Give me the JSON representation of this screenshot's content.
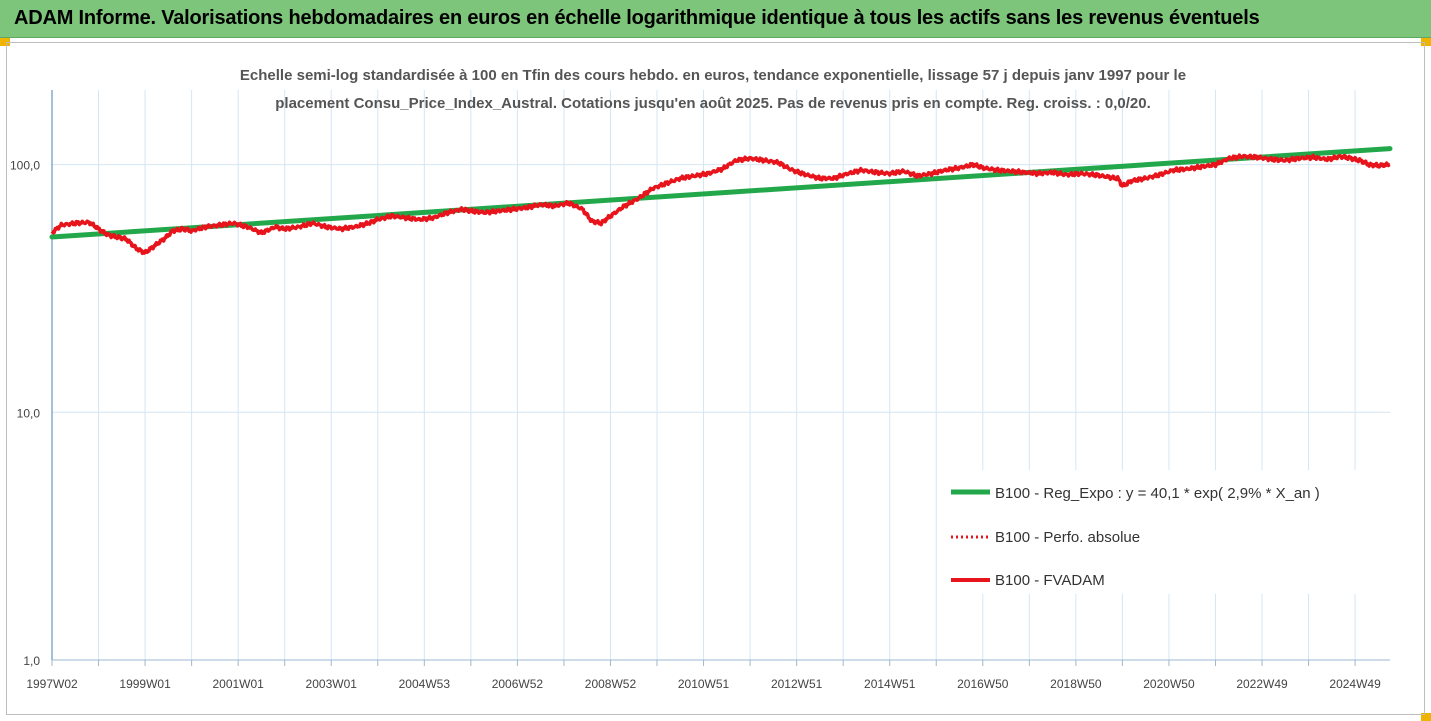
{
  "banner": {
    "title": "ADAM Informe. Valorisations hebdomadaires en euros en échelle logarithmique identique à tous les actifs sans les revenus éventuels"
  },
  "colors": {
    "banner": "#7dc57a",
    "trend": "#22a84a",
    "series": "#e8141b",
    "grid": "#d4e6f4",
    "accent": "#f0b400"
  },
  "chart_data": {
    "type": "line",
    "title_lines": [
      "Echelle semi-log standardisée à 100 en Tfin des cours hebdo. en euros, tendance exponentielle, lissage 57 j depuis janv 1997 pour le",
      "placement Consu_Price_Index_Austral. Cotations jusqu'en août 2025. Pas de revenus pris en compte. Reg. croiss. : 0,0/20."
    ],
    "y_scale": "log",
    "ylim": [
      1,
      200
    ],
    "y_ticks": [
      {
        "value": 1,
        "label": "1,0"
      },
      {
        "value": 10,
        "label": "10,0"
      },
      {
        "value": 100,
        "label": "100,0"
      }
    ],
    "xlim": [
      1997.0,
      2025.75
    ],
    "x_tick_labels": [
      {
        "t": 1997.0,
        "label": "1997W02"
      },
      {
        "t": 1999.0,
        "label": "1999W01"
      },
      {
        "t": 2001.0,
        "label": "2001W01"
      },
      {
        "t": 2003.0,
        "label": "2003W01"
      },
      {
        "t": 2005.0,
        "label": "2004W53"
      },
      {
        "t": 2007.0,
        "label": "2006W52"
      },
      {
        "t": 2009.0,
        "label": "2008W52"
      },
      {
        "t": 2011.0,
        "label": "2010W51"
      },
      {
        "t": 2013.0,
        "label": "2012W51"
      },
      {
        "t": 2015.0,
        "label": "2014W51"
      },
      {
        "t": 2017.0,
        "label": "2016W50"
      },
      {
        "t": 2019.0,
        "label": "2018W50"
      },
      {
        "t": 2021.0,
        "label": "2020W50"
      },
      {
        "t": 2023.0,
        "label": "2022W49"
      },
      {
        "t": 2025.0,
        "label": "2024W49"
      }
    ],
    "x_minor_ticks_per_year": 1,
    "grid": true,
    "legend_position": "bottom-right",
    "series": [
      {
        "name": "B100 - Reg_Expo : y = 40,1 * exp( 2,9% *  X_an )",
        "style": "solid-thick",
        "points": [
          [
            1997.0,
            51
          ],
          [
            2025.75,
            116
          ]
        ]
      },
      {
        "name": "B100 - Perfo. absolue",
        "style": "dotted",
        "points": []
      },
      {
        "name": "B100 - FVADAM",
        "style": "solid",
        "points": [
          [
            1997.0,
            53
          ],
          [
            1997.2,
            57
          ],
          [
            1997.5,
            58
          ],
          [
            1997.8,
            58.5
          ],
          [
            1998.0,
            55
          ],
          [
            1998.2,
            52
          ],
          [
            1998.4,
            51
          ],
          [
            1998.6,
            50
          ],
          [
            1998.8,
            46
          ],
          [
            1999.0,
            44
          ],
          [
            1999.2,
            47
          ],
          [
            1999.4,
            50
          ],
          [
            1999.6,
            54
          ],
          [
            1999.8,
            55
          ],
          [
            2000.0,
            54
          ],
          [
            2000.3,
            56
          ],
          [
            2000.6,
            57
          ],
          [
            2000.9,
            58
          ],
          [
            2001.2,
            56
          ],
          [
            2001.5,
            53
          ],
          [
            2001.8,
            56
          ],
          [
            2002.0,
            55
          ],
          [
            2002.3,
            56
          ],
          [
            2002.6,
            58
          ],
          [
            2002.9,
            56
          ],
          [
            2003.2,
            55
          ],
          [
            2003.5,
            56
          ],
          [
            2003.8,
            58
          ],
          [
            2004.0,
            60
          ],
          [
            2004.3,
            62
          ],
          [
            2004.6,
            61
          ],
          [
            2004.9,
            60
          ],
          [
            2005.2,
            61
          ],
          [
            2005.5,
            64
          ],
          [
            2005.8,
            66
          ],
          [
            2006.0,
            65
          ],
          [
            2006.3,
            64
          ],
          [
            2006.6,
            65
          ],
          [
            2006.9,
            66
          ],
          [
            2007.2,
            67
          ],
          [
            2007.5,
            69
          ],
          [
            2007.8,
            68
          ],
          [
            2008.1,
            70
          ],
          [
            2008.4,
            66
          ],
          [
            2008.6,
            59
          ],
          [
            2008.8,
            58
          ],
          [
            2009.0,
            62
          ],
          [
            2009.3,
            68
          ],
          [
            2009.6,
            73
          ],
          [
            2009.9,
            80
          ],
          [
            2010.2,
            84
          ],
          [
            2010.5,
            88
          ],
          [
            2010.8,
            90
          ],
          [
            2011.1,
            92
          ],
          [
            2011.4,
            96
          ],
          [
            2011.7,
            104
          ],
          [
            2012.0,
            106
          ],
          [
            2012.3,
            104
          ],
          [
            2012.6,
            102
          ],
          [
            2012.9,
            95
          ],
          [
            2013.2,
            91
          ],
          [
            2013.5,
            88
          ],
          [
            2013.8,
            88
          ],
          [
            2014.1,
            92
          ],
          [
            2014.4,
            95
          ],
          [
            2014.7,
            93
          ],
          [
            2015.0,
            92
          ],
          [
            2015.3,
            94
          ],
          [
            2015.6,
            90
          ],
          [
            2015.9,
            92
          ],
          [
            2016.2,
            95
          ],
          [
            2016.5,
            97
          ],
          [
            2016.8,
            100
          ],
          [
            2017.0,
            97
          ],
          [
            2017.3,
            95
          ],
          [
            2017.6,
            94
          ],
          [
            2017.9,
            93
          ],
          [
            2018.2,
            92
          ],
          [
            2018.5,
            93
          ],
          [
            2018.8,
            91
          ],
          [
            2019.1,
            92
          ],
          [
            2019.4,
            91
          ],
          [
            2019.7,
            89
          ],
          [
            2019.9,
            88
          ],
          [
            2020.0,
            82
          ],
          [
            2020.2,
            86
          ],
          [
            2020.5,
            88
          ],
          [
            2020.8,
            91
          ],
          [
            2021.1,
            95
          ],
          [
            2021.4,
            96
          ],
          [
            2021.7,
            98
          ],
          [
            2022.0,
            100
          ],
          [
            2022.3,
            106
          ],
          [
            2022.6,
            108
          ],
          [
            2022.9,
            107
          ],
          [
            2023.2,
            105
          ],
          [
            2023.5,
            104
          ],
          [
            2023.8,
            106
          ],
          [
            2024.1,
            107
          ],
          [
            2024.4,
            105
          ],
          [
            2024.7,
            108
          ],
          [
            2024.9,
            106
          ],
          [
            2025.1,
            104
          ],
          [
            2025.3,
            100
          ],
          [
            2025.5,
            99
          ],
          [
            2025.75,
            100
          ]
        ]
      }
    ]
  }
}
